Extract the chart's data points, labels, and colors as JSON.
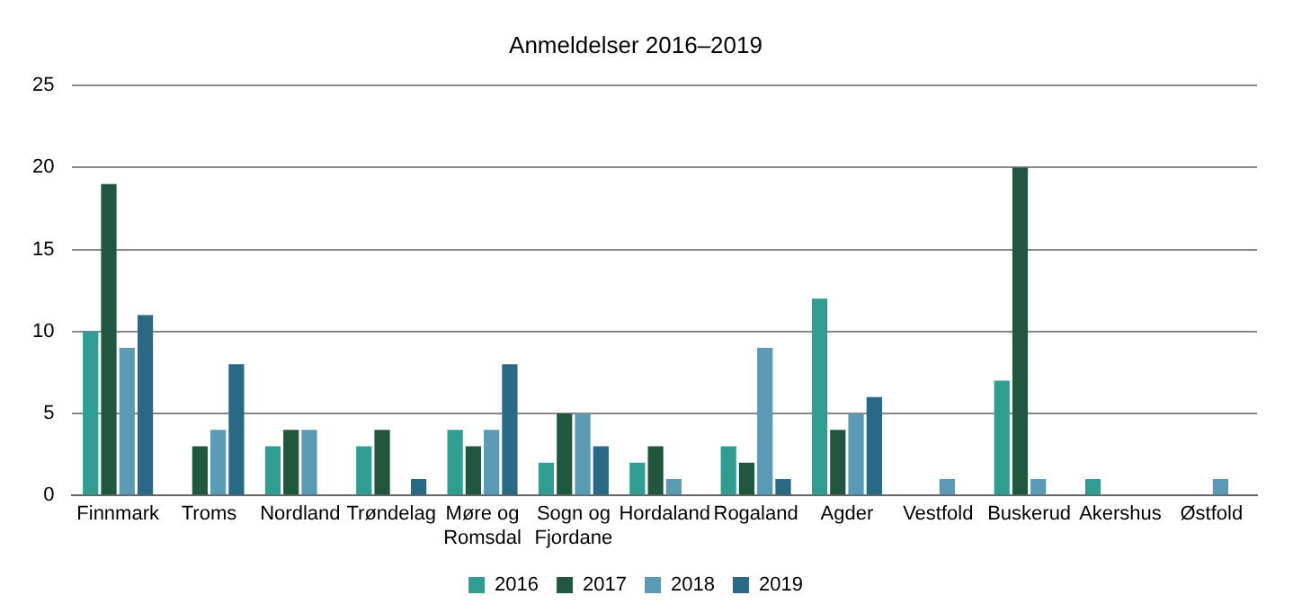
{
  "chart_data": {
    "type": "bar",
    "title": "Anmeldelser 2016–2019",
    "categories": [
      "Finnmark",
      "Troms",
      "Nordland",
      "Trøndelag",
      "Møre og Romsdal",
      "Sogn og Fjordane",
      "Hordaland",
      "Rogaland",
      "Agder",
      "Vestfold",
      "Buskerud",
      "Akershus",
      "Østfold"
    ],
    "series": [
      {
        "name": "2016",
        "color": "#2f9d8f",
        "values": [
          10,
          null,
          3,
          3,
          4,
          2,
          2,
          3,
          12,
          null,
          7,
          1,
          null
        ]
      },
      {
        "name": "2017",
        "color": "#22573f",
        "values": [
          19,
          3,
          4,
          4,
          3,
          5,
          3,
          2,
          4,
          null,
          20,
          null,
          null
        ]
      },
      {
        "name": "2018",
        "color": "#5a9ab5",
        "values": [
          9,
          4,
          4,
          null,
          4,
          5,
          1,
          9,
          5,
          1,
          1,
          null,
          1
        ]
      },
      {
        "name": "2019",
        "color": "#2a6986",
        "values": [
          11,
          8,
          null,
          1,
          8,
          3,
          null,
          1,
          6,
          null,
          null,
          null,
          null
        ]
      }
    ],
    "ylim": [
      0,
      25
    ],
    "yticks": [
      0,
      5,
      10,
      15,
      20,
      25
    ],
    "grid": "y",
    "legend": "bottom"
  }
}
